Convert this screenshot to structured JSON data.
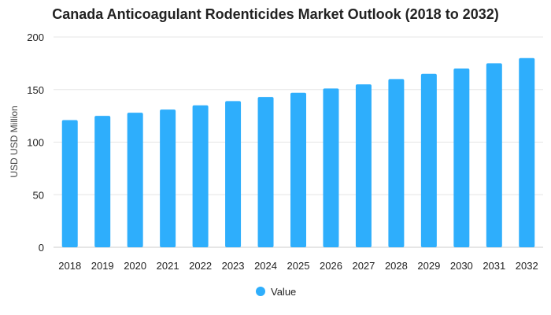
{
  "colors": {
    "bar": "#2eaefc",
    "grid": "#e6e6e6",
    "axis": "#cccccc"
  },
  "chart_data": {
    "type": "bar",
    "title": "Canada Anticoagulant Rodenticides Market Outlook (2018 to 2032)",
    "xlabel": "",
    "ylabel": "USD USD Million",
    "categories": [
      "2018",
      "2019",
      "2020",
      "2021",
      "2022",
      "2023",
      "2024",
      "2025",
      "2026",
      "2027",
      "2028",
      "2029",
      "2030",
      "2031",
      "2032"
    ],
    "series": [
      {
        "name": "Value",
        "values": [
          121,
          125,
          128,
          131,
          135,
          139,
          143,
          147,
          151,
          155,
          160,
          165,
          170,
          175,
          180
        ]
      }
    ],
    "ylim": [
      0,
      200
    ],
    "yticks": [
      0,
      50,
      100,
      150,
      200
    ],
    "grid": true,
    "legend": "bottom-center"
  }
}
